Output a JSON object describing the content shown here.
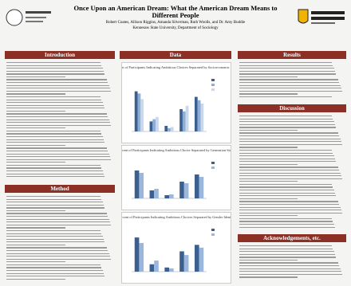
{
  "header": {
    "title": "Once Upon an American Dream: What the American Dream Means to Different People",
    "authors": "Robert Coates, Allison Riggins, Amanda Silverman, Ruth Woolls, and Dr. Amy Buddie",
    "affiliation": "Kennesaw State University, Department of Sociology"
  },
  "sections": {
    "introduction": "Introduction",
    "method": "Method",
    "data": "Data",
    "results": "Results",
    "discussion": "Discussion",
    "acknowledgements": "Acknowledgements, etc."
  },
  "charts": [
    {
      "type": "bar",
      "title": "Percent of Participants Indicating Ambitious Choices Separated by Socioeconomic Status",
      "ylim": [
        0,
        100
      ],
      "series": [
        {
          "color": "#3b5f8f",
          "values": [
            72,
            18,
            10,
            40,
            62
          ]
        },
        {
          "color": "#8eaed6",
          "values": [
            68,
            22,
            6,
            36,
            56
          ]
        },
        {
          "color": "#c9d8ec",
          "values": [
            58,
            26,
            8,
            46,
            50
          ]
        }
      ]
    },
    {
      "type": "bar",
      "title": "Percent of Participants Indicating Ambitious Choice Separated by Generation Status",
      "ylim": [
        0,
        100
      ],
      "series": [
        {
          "color": "#3b5f8f",
          "values": [
            70,
            20,
            8,
            42,
            60
          ]
        },
        {
          "color": "#9bb8dc",
          "values": [
            64,
            24,
            10,
            38,
            54
          ]
        }
      ]
    },
    {
      "type": "bar",
      "title": "Percent of Participants Indicating Ambitious Choices Separated by Gender Identity",
      "ylim": [
        0,
        100
      ],
      "series": [
        {
          "color": "#3b5f8f",
          "values": [
            74,
            16,
            9,
            44,
            58
          ]
        },
        {
          "color": "#9bb8dc",
          "values": [
            62,
            24,
            7,
            36,
            52
          ]
        }
      ]
    }
  ]
}
